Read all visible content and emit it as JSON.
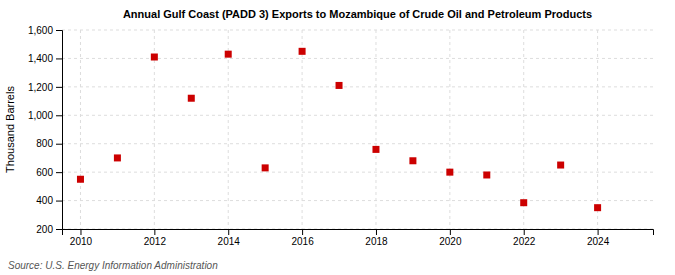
{
  "chart_data": {
    "type": "scatter",
    "title": "Annual Gulf Coast (PADD 3) Exports to Mozambique of Crude Oil and Petroleum Products",
    "ylabel": "Thousand Barrels",
    "annotations": [
      "Source: U.S. Energy Information Administration"
    ],
    "x": [
      2010,
      2011,
      2012,
      2013,
      2014,
      2015,
      2016,
      2017,
      2018,
      2019,
      2020,
      2021,
      2022,
      2023,
      2024
    ],
    "values": [
      550,
      700,
      1410,
      1120,
      1430,
      630,
      1450,
      1210,
      760,
      680,
      600,
      580,
      385,
      650,
      350
    ],
    "color": "#cc0000",
    "marker": "square",
    "xlim": [
      2009.5,
      2025.5
    ],
    "xticks": [
      2010,
      2012,
      2014,
      2016,
      2018,
      2020,
      2022,
      2024
    ],
    "ylim": [
      200,
      1600
    ],
    "yticks": [
      200,
      400,
      600,
      800,
      {
        "value": 1000,
        "label": "1,000"
      },
      {
        "value": 1200,
        "label": "1,200"
      },
      {
        "value": 1400,
        "label": "1,400"
      },
      {
        "value": 1600,
        "label": "1,600"
      }
    ],
    "grid": true
  }
}
